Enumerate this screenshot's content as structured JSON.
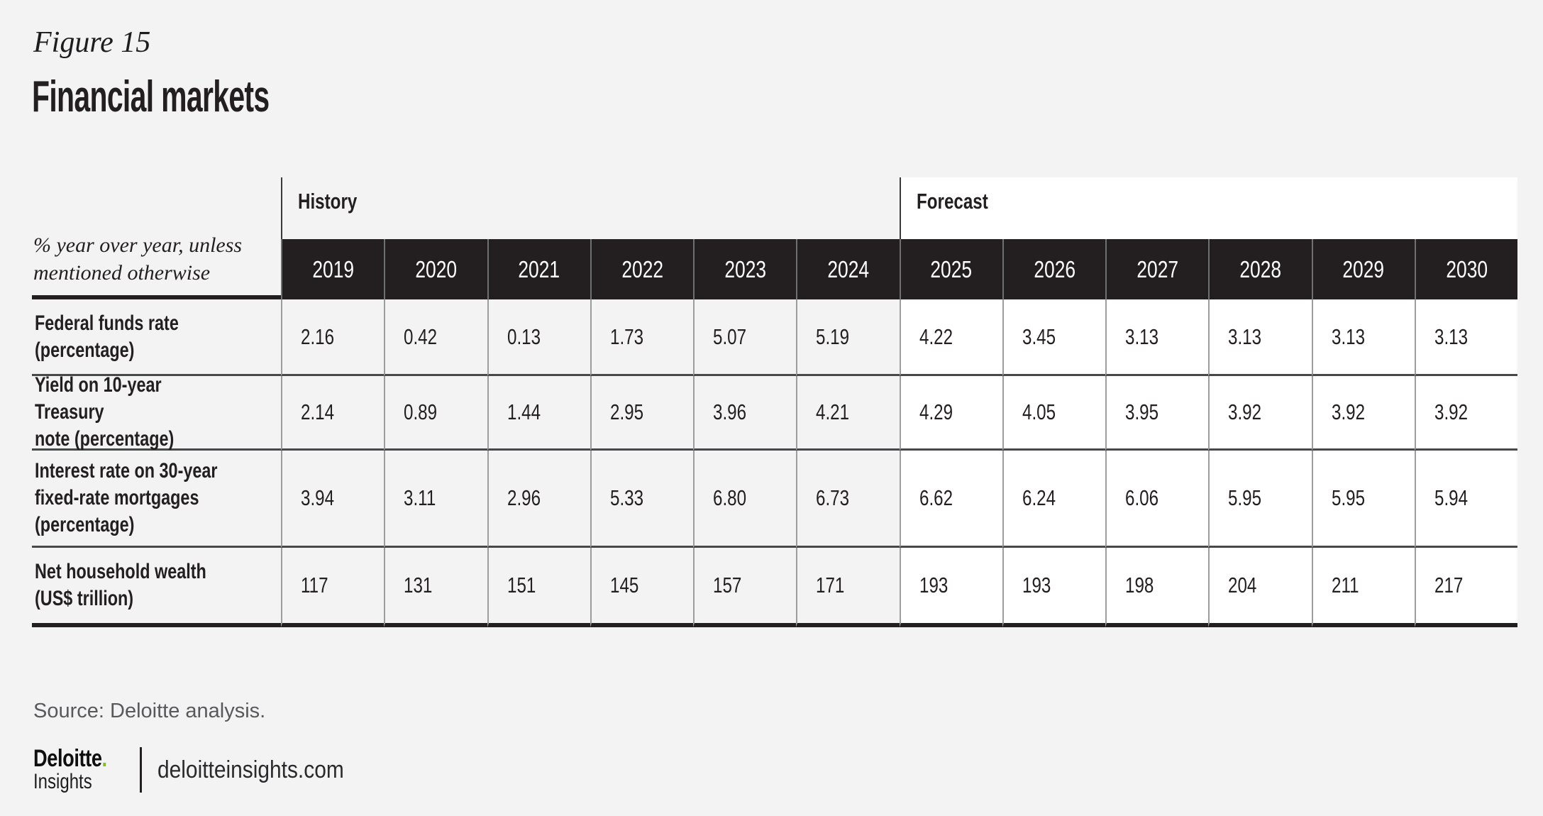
{
  "figure": {
    "label": "Figure 15",
    "title": "Financial markets"
  },
  "table": {
    "unit_note": "% year over year, unless\nmentioned otherwise",
    "group_headers": {
      "history": "History",
      "forecast": "Forecast"
    },
    "years": [
      "2019",
      "2020",
      "2021",
      "2022",
      "2023",
      "2024",
      "2025",
      "2026",
      "2027",
      "2028",
      "2029",
      "2030"
    ],
    "rows": [
      {
        "label": "Federal funds rate\n(percentage)",
        "values": [
          "2.16",
          "0.42",
          "0.13",
          "1.73",
          "5.07",
          "5.19",
          "4.22",
          "3.45",
          "3.13",
          "3.13",
          "3.13",
          "3.13"
        ]
      },
      {
        "label": "Yield on 10-year Treasury\nnote (percentage)",
        "values": [
          "2.14",
          "0.89",
          "1.44",
          "2.95",
          "3.96",
          "4.21",
          "4.29",
          "4.05",
          "3.95",
          "3.92",
          "3.92",
          "3.92"
        ]
      },
      {
        "label": "Interest rate on 30-year\nfixed-rate mortgages\n(percentage)",
        "values": [
          "3.94",
          "3.11",
          "2.96",
          "5.33",
          "6.80",
          "6.73",
          "6.62",
          "6.24",
          "6.06",
          "5.95",
          "5.95",
          "5.94"
        ]
      },
      {
        "label": "Net household wealth\n(US$ trillion)",
        "values": [
          "117",
          "131",
          "151",
          "145",
          "157",
          "171",
          "193",
          "193",
          "198",
          "204",
          "211",
          "217"
        ]
      }
    ]
  },
  "footer": {
    "source": "Source: Deloitte analysis.",
    "logo": {
      "brand": "Deloitte",
      "dot": ".",
      "sub": "Insights",
      "site": "deloitteinsights.com"
    }
  },
  "colors": {
    "background": "#f2f3f2",
    "header_dark": "#231f20",
    "forecast_bg": "#ffffff",
    "accent_green": "#86bc25",
    "grid_line": "#9b9d9f",
    "row_separator": "#47484a",
    "source_text": "#57595b"
  },
  "chart_data": {
    "type": "table",
    "title": "Financial markets",
    "subtitle": "Figure 15",
    "unit_note": "% year over year, unless mentioned otherwise",
    "column_groups": [
      {
        "label": "History",
        "years": [
          2019,
          2020,
          2021,
          2022,
          2023,
          2024
        ]
      },
      {
        "label": "Forecast",
        "years": [
          2025,
          2026,
          2027,
          2028,
          2029,
          2030
        ]
      }
    ],
    "columns": [
      2019,
      2020,
      2021,
      2022,
      2023,
      2024,
      2025,
      2026,
      2027,
      2028,
      2029,
      2030
    ],
    "rows": [
      {
        "label": "Federal funds rate (percentage)",
        "values": [
          2.16,
          0.42,
          0.13,
          1.73,
          5.07,
          5.19,
          4.22,
          3.45,
          3.13,
          3.13,
          3.13,
          3.13
        ]
      },
      {
        "label": "Yield on 10-year Treasury note (percentage)",
        "values": [
          2.14,
          0.89,
          1.44,
          2.95,
          3.96,
          4.21,
          4.29,
          4.05,
          3.95,
          3.92,
          3.92,
          3.92
        ]
      },
      {
        "label": "Interest rate on 30-year fixed-rate mortgages (percentage)",
        "values": [
          3.94,
          3.11,
          2.96,
          5.33,
          6.8,
          6.73,
          6.62,
          6.24,
          6.06,
          5.95,
          5.95,
          5.94
        ]
      },
      {
        "label": "Net household wealth (US$ trillion)",
        "values": [
          117,
          131,
          151,
          145,
          157,
          171,
          193,
          193,
          198,
          204,
          211,
          217
        ]
      }
    ],
    "source": "Source: Deloitte analysis."
  }
}
